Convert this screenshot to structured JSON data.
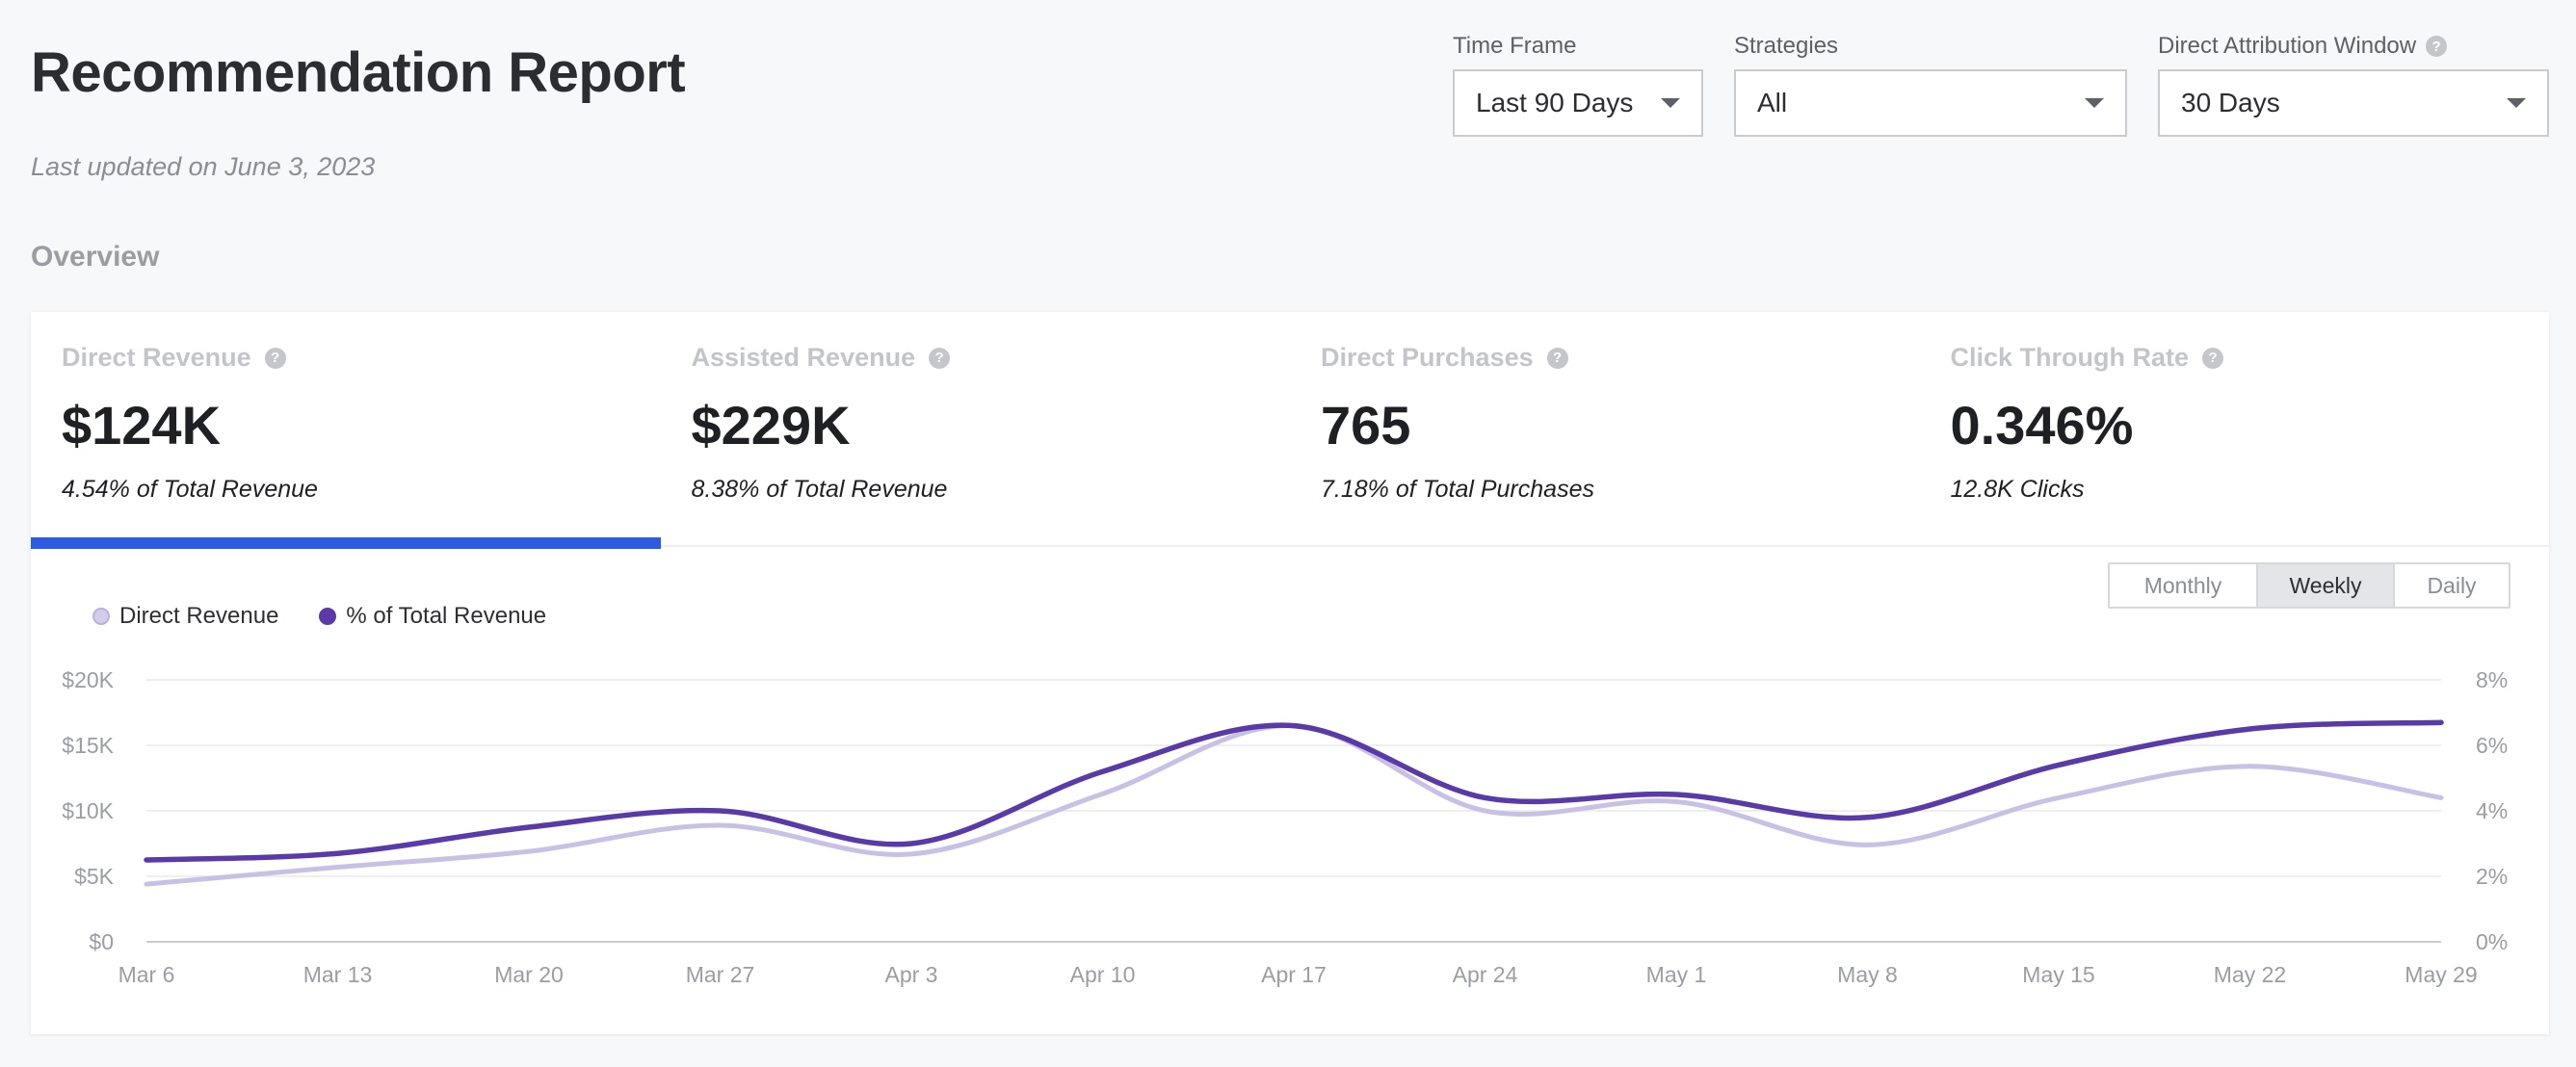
{
  "header": {
    "title": "Recommendation Report",
    "last_updated": "Last updated on June 3, 2023"
  },
  "filters": {
    "time_frame": {
      "label": "Time Frame",
      "value": "Last 90 Days"
    },
    "strategies": {
      "label": "Strategies",
      "value": "All"
    },
    "attribution": {
      "label": "Direct Attribution Window",
      "value": "30 Days"
    }
  },
  "overview": {
    "label": "Overview",
    "kpis": [
      {
        "label": "Direct Revenue",
        "value": "$124K",
        "sub": "4.54% of Total Revenue"
      },
      {
        "label": "Assisted Revenue",
        "value": "$229K",
        "sub": "8.38% of Total Revenue"
      },
      {
        "label": "Direct Purchases",
        "value": "765",
        "sub": "7.18% of Total Purchases"
      },
      {
        "label": "Click Through Rate",
        "value": "0.346%",
        "sub": "12.8K Clicks"
      }
    ]
  },
  "granularity": {
    "monthly": "Monthly",
    "weekly": "Weekly",
    "daily": "Daily",
    "selected": "Weekly"
  },
  "colors": {
    "accent": "#2f5be3",
    "series_light": "#c9c0e6",
    "series_dark": "#5a3aa8"
  },
  "chart_data": {
    "type": "line",
    "x": [
      "Mar 6",
      "Mar 13",
      "Mar 20",
      "Mar 27",
      "Apr 3",
      "Apr 10",
      "Apr 17",
      "Apr 24",
      "May 1",
      "May 8",
      "May 15",
      "May 22",
      "May 29"
    ],
    "y_left_ticks": [
      "$0",
      "$5K",
      "$10K",
      "$15K",
      "$20K"
    ],
    "y_right_ticks": [
      "0%",
      "2%",
      "4%",
      "6%",
      "8%"
    ],
    "ylim_left": [
      0,
      20000
    ],
    "ylim_right": [
      0,
      8
    ],
    "grid": true,
    "legend_position": "top-left",
    "series": [
      {
        "name": "Direct Revenue",
        "axis": "left",
        "color": "#c9c0e6",
        "values": [
          4400,
          5700,
          6900,
          8900,
          6700,
          11300,
          16500,
          10000,
          10700,
          7400,
          11000,
          13400,
          11000
        ]
      },
      {
        "name": "% of Total Revenue",
        "axis": "right",
        "color": "#5a3aa8",
        "values": [
          2.5,
          2.7,
          3.5,
          4.0,
          3.0,
          5.2,
          6.6,
          4.4,
          4.5,
          3.8,
          5.4,
          6.5,
          6.7
        ]
      }
    ]
  }
}
